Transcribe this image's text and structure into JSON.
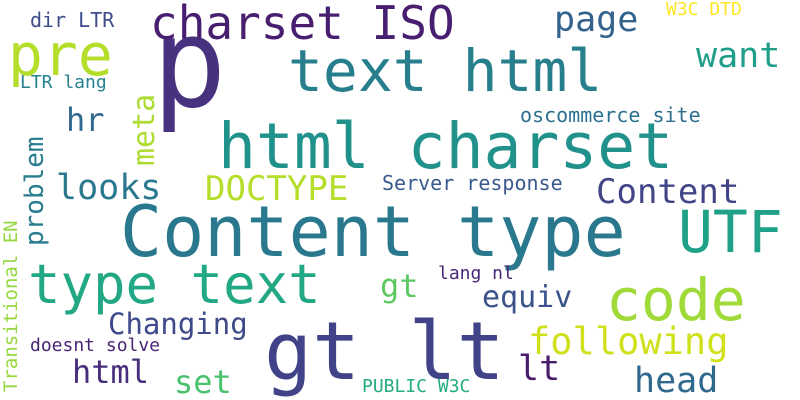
{
  "words": [
    {
      "id": "p",
      "text": "p",
      "color": "#46327e"
    },
    {
      "id": "content_type",
      "text": "Content type",
      "color": "#2a788e"
    },
    {
      "id": "gt_lt",
      "text": "gt lt",
      "color": "#404387"
    },
    {
      "id": "html_charset",
      "text": "html charset",
      "color": "#21918c"
    },
    {
      "id": "text_html",
      "text": "text html",
      "color": "#277f8e"
    },
    {
      "id": "type_text",
      "text": "type text",
      "color": "#22a884"
    },
    {
      "id": "charset_iso",
      "text": "charset ISO",
      "color": "#481f70"
    },
    {
      "id": "pre",
      "text": "pre",
      "color": "#b5de2b"
    },
    {
      "id": "code",
      "text": "code",
      "color": "#a0da39"
    },
    {
      "id": "utf",
      "text": "UTF",
      "color": "#1fa187"
    },
    {
      "id": "doctype",
      "text": "DOCTYPE",
      "color": "#b5de2b"
    },
    {
      "id": "content",
      "text": "Content",
      "color": "#414487"
    },
    {
      "id": "following",
      "text": "following",
      "color": "#d0e11c"
    },
    {
      "id": "looks",
      "text": "looks",
      "color": "#2a788e"
    },
    {
      "id": "want",
      "text": "want",
      "color": "#1f9e89"
    },
    {
      "id": "page",
      "text": "page",
      "color": "#33638d"
    },
    {
      "id": "head",
      "text": "head",
      "color": "#31688e"
    },
    {
      "id": "hr",
      "text": "hr",
      "color": "#31688e"
    },
    {
      "id": "equiv",
      "text": "equiv",
      "color": "#3b528b"
    },
    {
      "id": "gt",
      "text": "gt",
      "color": "#5ec962"
    },
    {
      "id": "changing",
      "text": "Changing",
      "color": "#3e4a89"
    },
    {
      "id": "html",
      "text": "html",
      "color": "#472d7b"
    },
    {
      "id": "set",
      "text": "set",
      "color": "#4ac16d"
    },
    {
      "id": "lt",
      "text": "lt",
      "color": "#481b6d"
    },
    {
      "id": "meta",
      "text": "meta",
      "color": "#addc30"
    },
    {
      "id": "problem",
      "text": "problem",
      "color": "#287c8e"
    },
    {
      "id": "oscommerce_site",
      "text": "oscommerce site",
      "color": "#2c718e"
    },
    {
      "id": "server_response",
      "text": "Server response",
      "color": "#38598c"
    },
    {
      "id": "w3c_dtd",
      "text": "W3C DTD",
      "color": "#fde725"
    },
    {
      "id": "dir_ltr",
      "text": "dir LTR",
      "color": "#3e4c8a"
    },
    {
      "id": "ltr_lang",
      "text": "LTR lang",
      "color": "#26828e"
    },
    {
      "id": "lang_nl",
      "text": "lang nl",
      "color": "#482878"
    },
    {
      "id": "doesnt_solve",
      "text": "doesnt solve",
      "color": "#482475"
    },
    {
      "id": "public_w3c",
      "text": "PUBLIC W3C",
      "color": "#25ac82"
    },
    {
      "id": "transitional_en",
      "text": "Transitional EN",
      "color": "#95d840"
    }
  ]
}
